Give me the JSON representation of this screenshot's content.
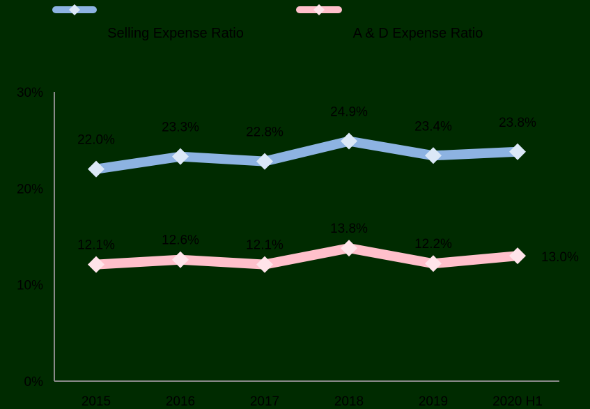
{
  "chart_data": {
    "type": "line",
    "categories": [
      "2015",
      "2016",
      "2017",
      "2018",
      "2019",
      "2020 H1"
    ],
    "series": [
      {
        "name": "Selling Expense Ratio",
        "values": [
          22.0,
          23.3,
          22.8,
          24.9,
          23.4,
          23.8
        ],
        "labels": [
          "22.0%",
          "23.3%",
          "22.8%",
          "24.9%",
          "23.4%",
          "23.8%"
        ],
        "color": "#8db3e2",
        "marker_color": "#dbe8f7",
        "label_color": "#000000"
      },
      {
        "name": "A & D  Expense Ratio",
        "values": [
          12.1,
          12.6,
          12.1,
          13.8,
          12.2,
          13.0
        ],
        "labels": [
          "12.1%",
          "12.6%",
          "12.1%",
          "13.8%",
          "12.2%",
          "13.0%"
        ],
        "color": "#ffc0cb",
        "marker_color": "#ffe4ea",
        "label_color": "#000000"
      }
    ],
    "yticks": [
      "0%",
      "10%",
      "20%",
      "30%"
    ],
    "ylim": [
      0,
      30
    ],
    "axis_color": "#8a8a8a",
    "background": "#002b00",
    "grid": false,
    "legend": "top",
    "title": "",
    "xlabel": "",
    "ylabel": ""
  }
}
